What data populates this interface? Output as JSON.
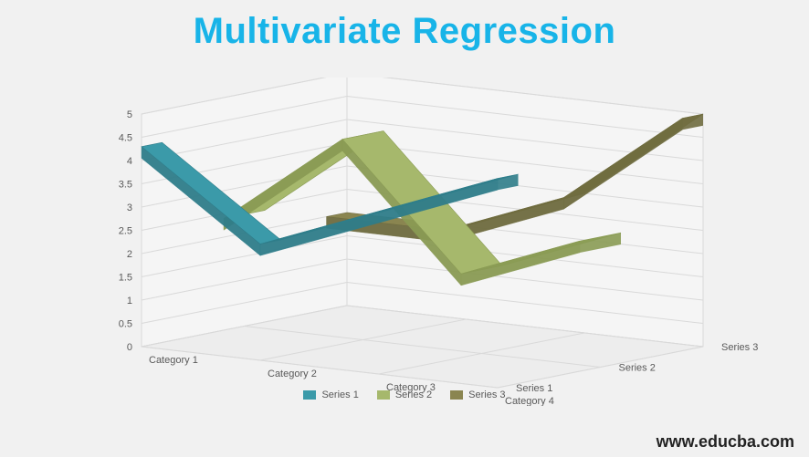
{
  "title": "Multivariate Regression",
  "watermark": "www.educba.com",
  "chart": {
    "type": "3d-line",
    "background_color": "#f1f1f1",
    "floor_color": "#ededed",
    "wall_color": "#f5f5f5",
    "grid_color": "#d9d9d9",
    "tick_fontsize": 11,
    "label_fontsize": 11,
    "y_axis": {
      "min": 0,
      "max": 5,
      "step": 0.5,
      "ticks": [
        "0",
        "0.5",
        "1",
        "1.5",
        "2",
        "2.5",
        "3",
        "3.5",
        "4",
        "4.5",
        "5"
      ]
    },
    "categories": [
      "Category 1",
      "Category 2",
      "Category 3",
      "Category 4"
    ],
    "depth_series_labels": [
      "Series 1",
      "Series 2",
      "Series 3"
    ],
    "series": [
      {
        "name": "Series 1",
        "color": "#3b9aa9",
        "side_color": "#2f7d8a",
        "values": [
          4.3,
          2.5,
          3.5,
          4.5
        ]
      },
      {
        "name": "Series 2",
        "color": "#a6b86c",
        "side_color": "#8a9b54",
        "values": [
          2.4,
          4.4,
          1.8,
          2.8
        ]
      },
      {
        "name": "Series 3",
        "color": "#8a8550",
        "side_color": "#6f6c3f",
        "values": [
          2.0,
          2.0,
          3.0,
          5.0
        ]
      }
    ],
    "ribbon_thickness_value": 0.25
  }
}
